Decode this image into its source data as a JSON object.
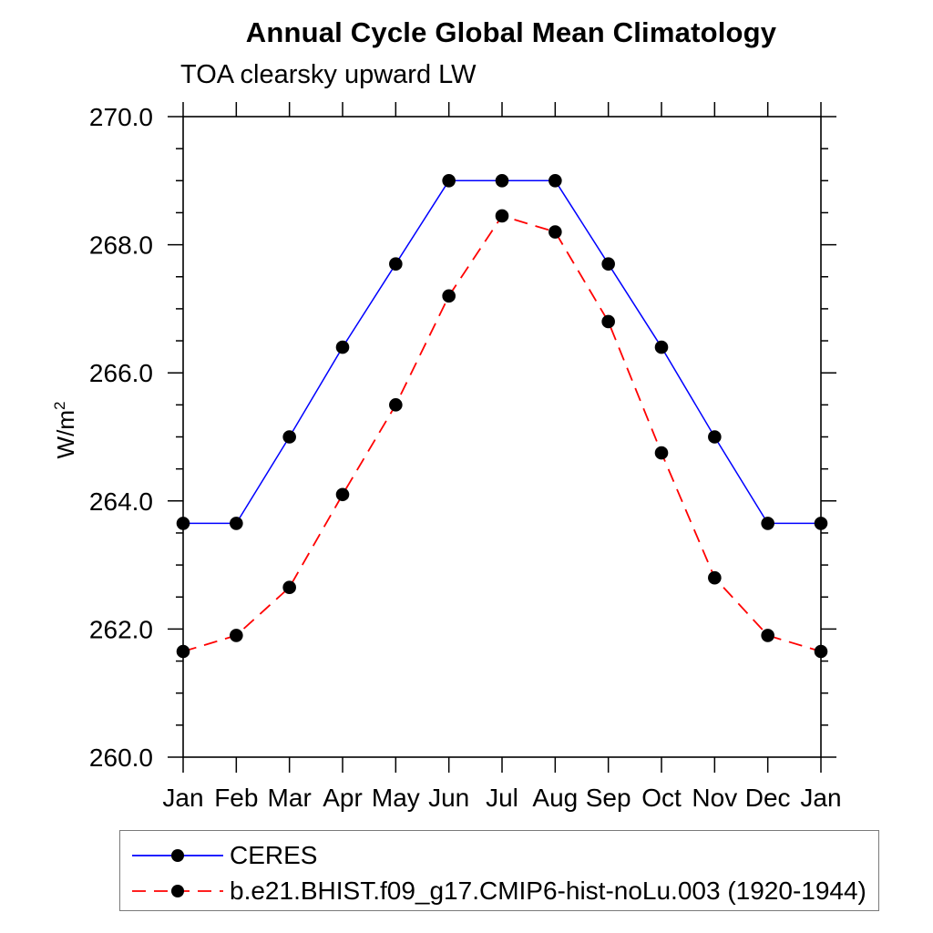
{
  "chart_data": {
    "type": "line",
    "title": "Annual Cycle Global Mean Climatology",
    "subtitle": "TOA clearsky upward LW",
    "ylabel_base": "W/m",
    "ylabel_exponent": "2",
    "categories": [
      "Jan",
      "Feb",
      "Mar",
      "Apr",
      "May",
      "Jun",
      "Jul",
      "Aug",
      "Sep",
      "Oct",
      "Nov",
      "Dec",
      "Jan"
    ],
    "ylim": [
      260.0,
      270.0
    ],
    "y_major_tick_step": 2.0,
    "y_minor_tick_step": 0.5,
    "y_tick_labels": [
      "260.0",
      "262.0",
      "264.0",
      "266.0",
      "268.0",
      "270.0"
    ],
    "grid": false,
    "legend_position": "bottom-outside",
    "axis_color": "#000000",
    "marker": "circle",
    "marker_color": "#000000",
    "series": [
      {
        "name": "CERES",
        "color": "#0000ff",
        "line_style": "solid",
        "values": [
          263.65,
          263.65,
          265.0,
          266.4,
          267.7,
          269.0,
          269.0,
          269.0,
          267.7,
          266.4,
          265.0,
          263.65,
          263.65
        ]
      },
      {
        "name": "b.e21.BHIST.f09_g17.CMIP6-hist-noLu.003 (1920-1944)",
        "color": "#ff0000",
        "line_style": "dashed",
        "values": [
          261.65,
          261.9,
          262.65,
          264.1,
          265.5,
          267.2,
          268.45,
          268.2,
          266.8,
          264.75,
          262.8,
          261.9,
          261.65
        ]
      }
    ]
  }
}
